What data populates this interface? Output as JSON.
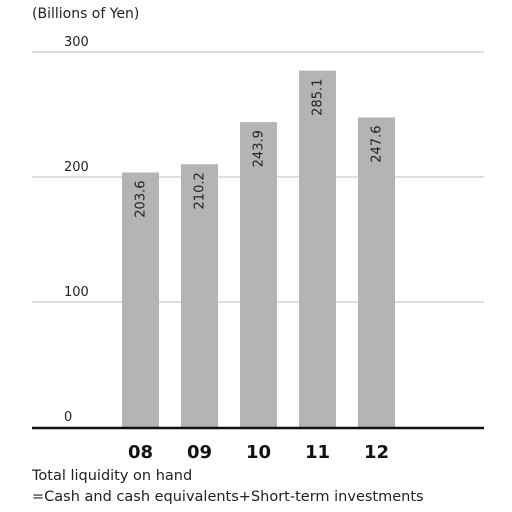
{
  "chart_data": {
    "type": "bar",
    "title": "",
    "unit_label": "(Billions of Yen)",
    "categories": [
      "08",
      "09",
      "10",
      "11",
      "12"
    ],
    "values": [
      203.6,
      210.2,
      243.9,
      285.1,
      247.6
    ],
    "value_labels": [
      "203.6",
      "210.2",
      "243.9",
      "285.1",
      "247.6"
    ],
    "ylim": [
      0,
      300
    ],
    "yticks": [
      0,
      100,
      200,
      300
    ],
    "ytick_labels": [
      "0",
      "100",
      "200",
      "300"
    ],
    "grid": true,
    "xlabel": "",
    "ylabel": "",
    "colors": {
      "bar": "#b4b4b4",
      "grid": "#bdbdbd",
      "axis": "#111111",
      "label": "#222222"
    }
  },
  "notes": [
    "Total liquidity on hand",
    "=Cash and cash equivalents+Short-term investments"
  ]
}
